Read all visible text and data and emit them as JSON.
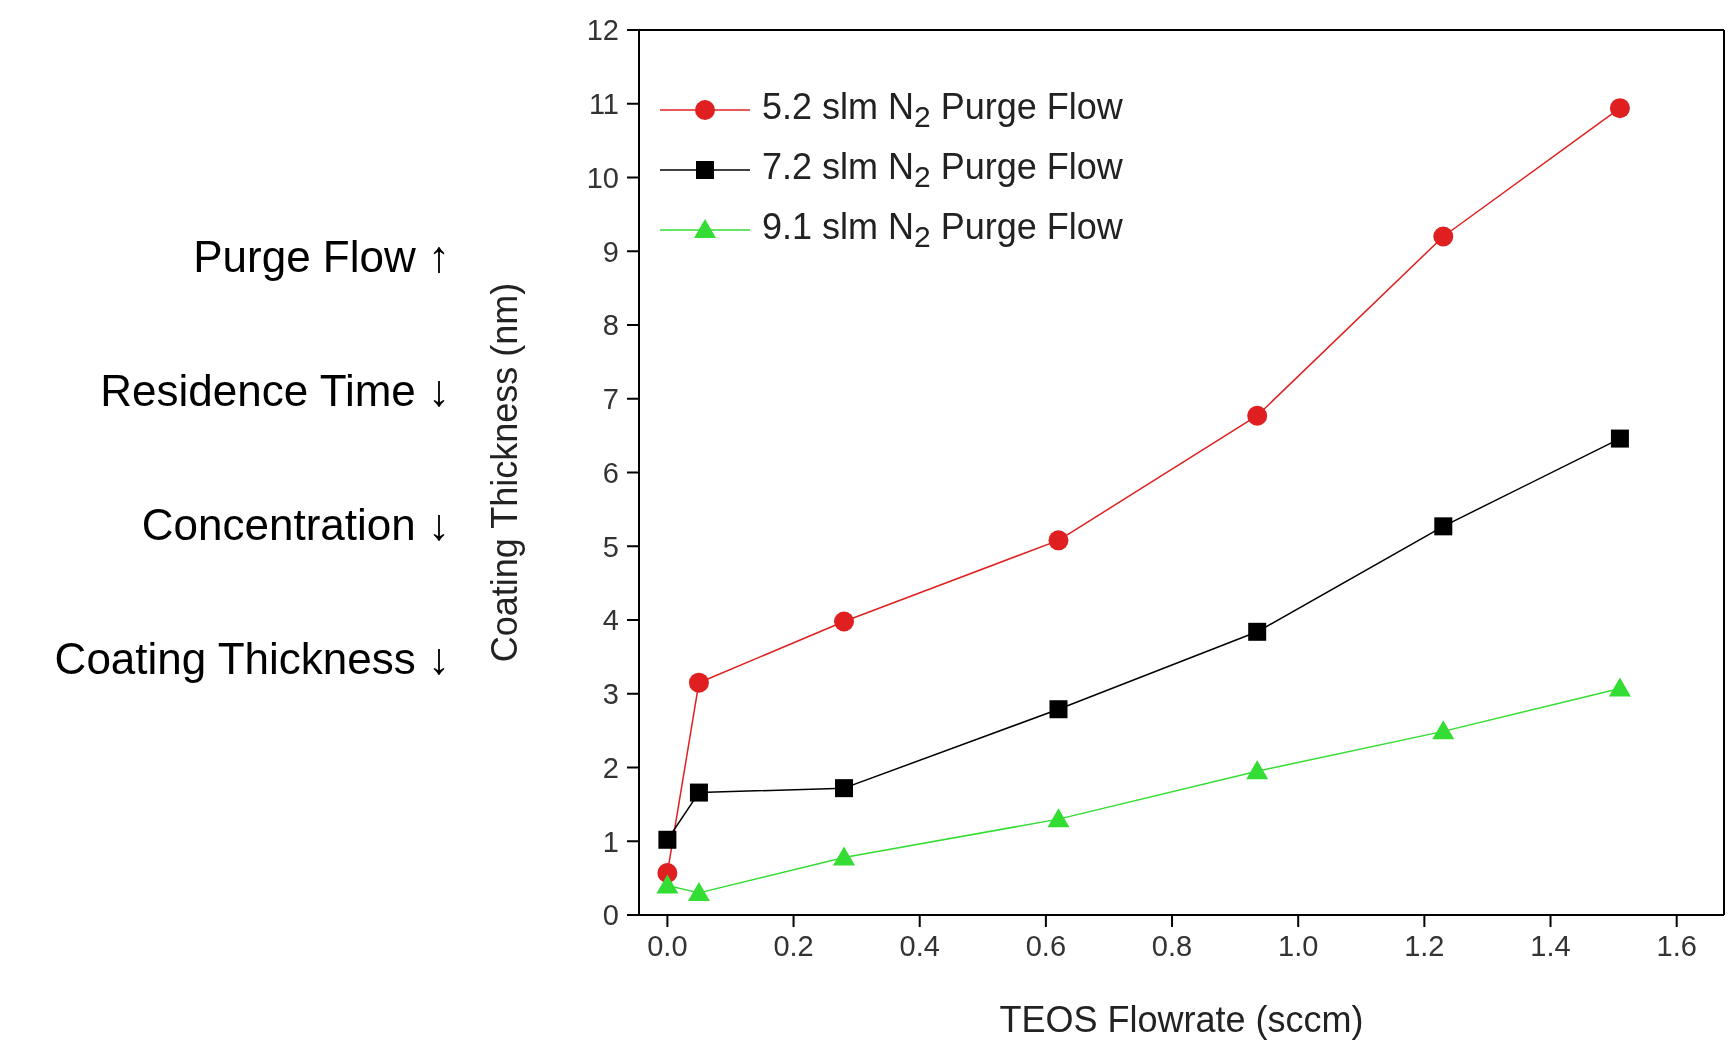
{
  "chart_data": {
    "type": "line",
    "xlabel": "TEOS Flowrate (sccm)",
    "ylabel": "Coating Thickness (nm)",
    "x": [
      0.0,
      0.05,
      0.28,
      0.62,
      0.935,
      1.23,
      1.51
    ],
    "series": [
      {
        "name": "5.2 slm N$_{2}$ Purge Flow",
        "color": "#e02020",
        "marker": "circle",
        "values": [
          0.57,
          3.15,
          3.98,
          5.08,
          6.77,
          9.2,
          10.94
        ]
      },
      {
        "name": "7.2 slm N$_{2}$ Purge Flow",
        "color": "#000000",
        "marker": "square",
        "values": [
          1.02,
          1.66,
          1.72,
          2.79,
          3.84,
          5.27,
          6.46
        ]
      },
      {
        "name": "9.1 slm N$_{2}$ Purge Flow",
        "color": "#33dd33",
        "marker": "triangle",
        "values": [
          0.4,
          0.3,
          0.78,
          1.3,
          1.95,
          2.49,
          3.07
        ]
      }
    ],
    "xlim": [
      -0.045,
      1.675
    ],
    "xticks": [
      {
        "value": 0,
        "label": "0.0"
      },
      0.2,
      0.4,
      0.6,
      0.8,
      {
        "value": 1,
        "label": "1.0"
      },
      1.2,
      1.4,
      1.6
    ],
    "ylim": [
      0,
      12
    ],
    "yticks": [
      0,
      1,
      2,
      3,
      4,
      5,
      6,
      7,
      8,
      9,
      10,
      11,
      12
    ],
    "grid": false,
    "legend": "top left",
    "annotations": [
      "Purge Flow ↑",
      "Residence Time ↓",
      "Concentration ↓",
      "Coating Thickness ↓"
    ]
  }
}
